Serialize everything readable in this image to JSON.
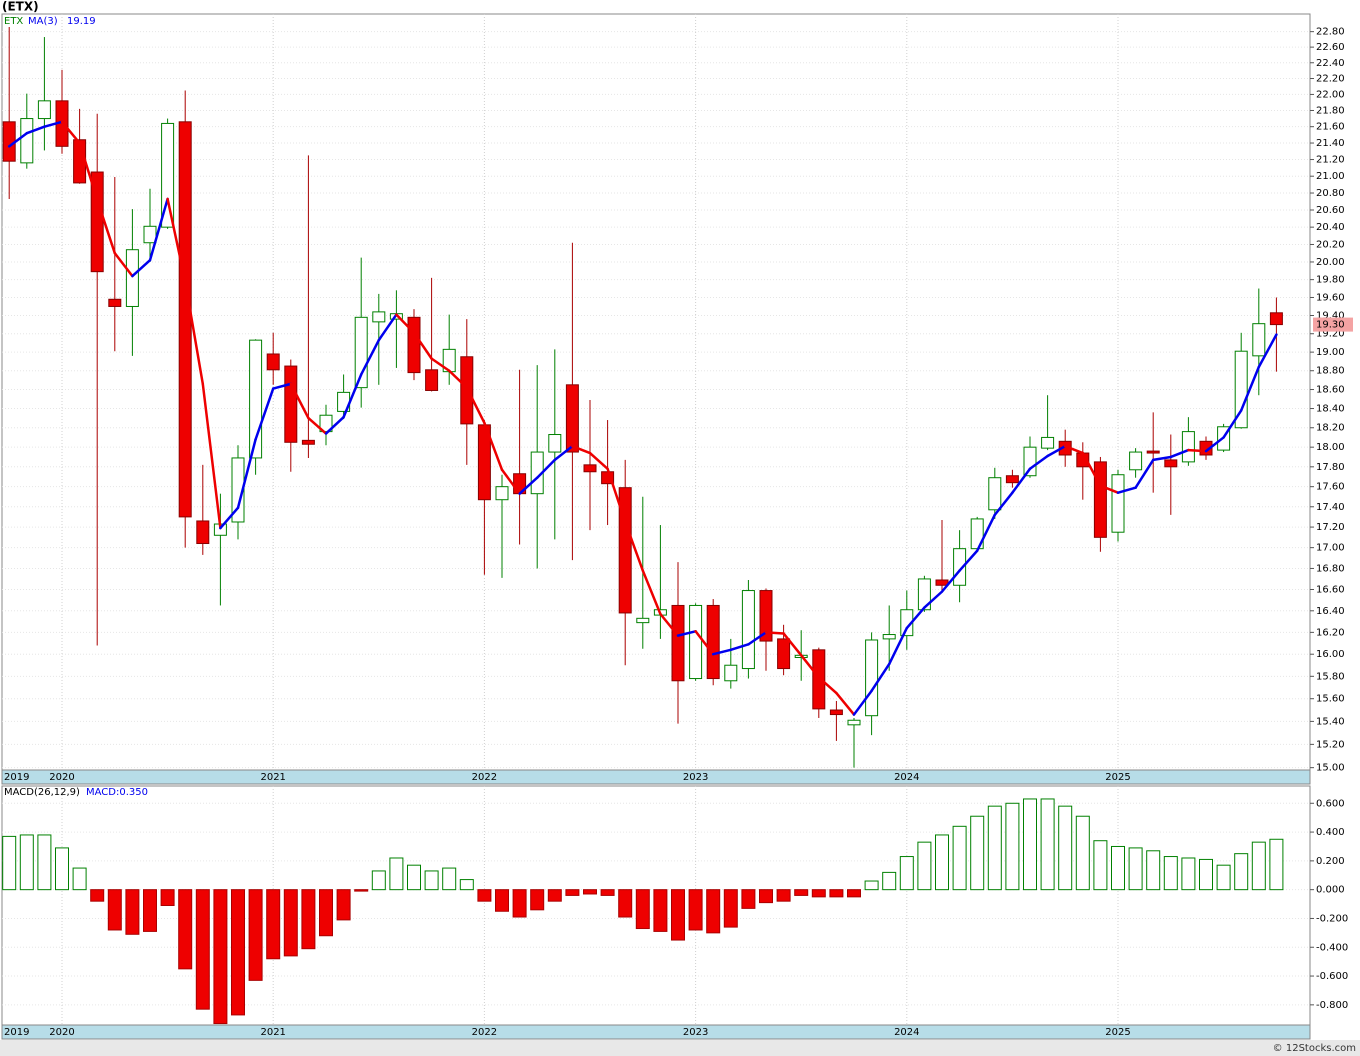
{
  "chart_data": [
    {
      "type": "candlestick",
      "title": "(ETX)",
      "name": "ETX",
      "color": "#008000",
      "up_color": "#ffffff",
      "down_color": "#ee0000",
      "categories": [
        "2019",
        null,
        null,
        "2020",
        null,
        null,
        null,
        null,
        null,
        null,
        null,
        null,
        null,
        null,
        null,
        "2021",
        null,
        null,
        null,
        null,
        null,
        null,
        null,
        null,
        null,
        null,
        null,
        "2022",
        null,
        null,
        null,
        null,
        null,
        null,
        null,
        null,
        null,
        null,
        null,
        "2023",
        null,
        null,
        null,
        null,
        null,
        null,
        null,
        null,
        null,
        null,
        null,
        "2024",
        null,
        null,
        null,
        null,
        null,
        null,
        null,
        null,
        null,
        null,
        null,
        "2025",
        null,
        null,
        null,
        null,
        null,
        null,
        null,
        null,
        null
      ],
      "open": [
        21.66,
        21.16,
        21.7,
        21.92,
        21.44,
        21.05,
        19.58,
        19.5,
        20.22,
        20.4,
        21.66,
        17.26,
        17.12,
        17.25,
        17.89,
        18.98,
        18.85,
        18.07,
        18.16,
        18.37,
        18.62,
        19.33,
        19.36,
        19.38,
        18.81,
        18.79,
        18.95,
        18.23,
        17.47,
        17.73,
        17.53,
        17.95,
        18.65,
        17.82,
        17.75,
        17.59,
        16.29,
        16.36,
        16.45,
        15.78,
        16.45,
        15.76,
        15.87,
        16.59,
        16.14,
        15.97,
        16.04,
        15.5,
        15.37,
        15.45,
        16.14,
        16.17,
        16.41,
        16.69,
        16.64,
        16.99,
        17.37,
        17.71,
        17.71,
        17.99,
        18.06,
        17.94,
        17.85,
        17.15,
        17.77,
        17.96,
        17.87,
        17.85,
        18.06,
        17.97,
        18.2,
        18.96,
        19.43
      ],
      "high": [
        22.86,
        22.01,
        22.73,
        22.31,
        21.82,
        21.76,
        20.99,
        20.61,
        20.85,
        21.7,
        22.05,
        17.82,
        17.53,
        18.02,
        19.14,
        19.21,
        18.92,
        21.25,
        18.44,
        18.76,
        20.05,
        19.64,
        19.68,
        19.47,
        19.82,
        19.41,
        19.36,
        18.28,
        17.72,
        18.81,
        18.86,
        19.03,
        20.22,
        18.49,
        18.28,
        17.87,
        17.5,
        17.22,
        16.86,
        16.47,
        16.51,
        16.14,
        16.69,
        16.61,
        16.27,
        16.22,
        16.06,
        15.58,
        15.43,
        16.2,
        16.45,
        16.59,
        16.73,
        17.27,
        17.17,
        17.3,
        17.79,
        17.77,
        18.11,
        18.54,
        18.18,
        18.05,
        17.9,
        17.77,
        17.99,
        18.36,
        18.13,
        18.31,
        18.11,
        18.24,
        19.21,
        19.7,
        19.6
      ],
      "low": [
        20.73,
        21.09,
        21.31,
        21.27,
        20.91,
        16.08,
        19.01,
        18.96,
        20.0,
        20.38,
        17.0,
        16.93,
        16.45,
        17.08,
        17.72,
        18.65,
        17.75,
        17.89,
        18.02,
        18.29,
        18.41,
        18.65,
        18.83,
        18.7,
        18.58,
        18.65,
        17.82,
        16.74,
        16.71,
        17.03,
        16.8,
        17.08,
        16.88,
        17.17,
        17.22,
        15.9,
        16.05,
        16.14,
        15.38,
        15.76,
        15.72,
        15.69,
        15.78,
        15.85,
        15.81,
        15.76,
        15.43,
        15.23,
        15.0,
        15.28,
        15.85,
        16.04,
        16.39,
        16.59,
        16.48,
        16.98,
        17.28,
        17.59,
        17.69,
        17.97,
        17.8,
        17.47,
        16.96,
        17.06,
        17.69,
        17.54,
        17.32,
        17.81,
        17.87,
        17.95,
        18.19,
        18.54,
        18.79
      ],
      "close": [
        21.18,
        21.7,
        21.92,
        21.36,
        20.92,
        19.89,
        19.5,
        20.14,
        20.41,
        21.64,
        17.3,
        17.04,
        17.23,
        17.89,
        19.13,
        18.81,
        18.05,
        18.03,
        18.33,
        18.57,
        19.38,
        19.44,
        19.42,
        18.78,
        18.59,
        19.03,
        18.24,
        17.47,
        17.6,
        17.53,
        17.95,
        18.13,
        17.95,
        17.75,
        17.63,
        16.38,
        16.33,
        16.41,
        15.76,
        16.45,
        15.78,
        15.9,
        16.59,
        16.12,
        15.87,
        15.99,
        15.51,
        15.46,
        15.41,
        16.13,
        16.18,
        16.41,
        16.7,
        16.64,
        16.99,
        17.28,
        17.69,
        17.64,
        18.0,
        18.1,
        17.92,
        17.8,
        17.1,
        17.72,
        17.95,
        17.94,
        17.8,
        18.16,
        17.92,
        18.21,
        19.01,
        19.31,
        19.3
      ],
      "close_label": "19.30",
      "series": [
        {
          "name": "MA(3)",
          "up_color": "#0000ee",
          "down_color": "#ee0000",
          "values": [
            21.36,
            21.52,
            21.6,
            21.66,
            21.4,
            20.72,
            20.1,
            19.84,
            20.02,
            20.73,
            19.78,
            18.66,
            17.19,
            17.39,
            18.08,
            18.61,
            18.66,
            18.3,
            18.14,
            18.31,
            18.76,
            19.13,
            19.41,
            19.21,
            18.93,
            18.8,
            18.62,
            18.25,
            17.77,
            17.53,
            17.69,
            17.87,
            18.01,
            17.94,
            17.78,
            17.25,
            16.78,
            16.37,
            16.17,
            16.21,
            16.0,
            16.04,
            16.09,
            16.2,
            16.19,
            15.99,
            15.79,
            15.65,
            15.46,
            15.67,
            15.91,
            16.24,
            16.43,
            16.58,
            16.78,
            16.97,
            17.32,
            17.54,
            17.78,
            17.91,
            18.01,
            17.94,
            17.61,
            17.54,
            17.59,
            17.87,
            17.9,
            17.97,
            17.96,
            18.1,
            18.38,
            18.84,
            19.19
          ]
        }
      ],
      "log_scale": true,
      "grid": true,
      "ylim": [
        14.98,
        23.03
      ],
      "yticks": [
        {
          "value": 15.0,
          "label": "15.00"
        },
        {
          "value": 15.2,
          "label": "15.20"
        },
        {
          "value": 15.4,
          "label": "15.40"
        },
        {
          "value": 15.6,
          "label": "15.60"
        },
        {
          "value": 15.8,
          "label": "15.80"
        },
        {
          "value": 16.0,
          "label": "16.00"
        },
        {
          "value": 16.2,
          "label": "16.20"
        },
        {
          "value": 16.4,
          "label": "16.40"
        },
        {
          "value": 16.6,
          "label": "16.60"
        },
        {
          "value": 16.8,
          "label": "16.80"
        },
        {
          "value": 17.0,
          "label": "17.00"
        },
        {
          "value": 17.2,
          "label": "17.20"
        },
        {
          "value": 17.4,
          "label": "17.40"
        },
        {
          "value": 17.6,
          "label": "17.60"
        },
        {
          "value": 17.8,
          "label": "17.80"
        },
        {
          "value": 18.0,
          "label": "18.00"
        },
        {
          "value": 18.2,
          "label": "18.20"
        },
        {
          "value": 18.4,
          "label": "18.40"
        },
        {
          "value": 18.6,
          "label": "18.60"
        },
        {
          "value": 18.8,
          "label": "18.80"
        },
        {
          "value": 19.0,
          "label": "19.00"
        },
        {
          "value": 19.2,
          "label": "19.20"
        },
        {
          "value": 19.4,
          "label": "19.40"
        },
        {
          "value": 19.6,
          "label": "19.60"
        },
        {
          "value": 19.8,
          "label": "19.80"
        },
        {
          "value": 20.0,
          "label": "20.00"
        },
        {
          "value": 20.2,
          "label": "20.20"
        },
        {
          "value": 20.4,
          "label": "20.40"
        },
        {
          "value": 20.6,
          "label": "20.60"
        },
        {
          "value": 20.8,
          "label": "20.80"
        },
        {
          "value": 21.0,
          "label": "21.00"
        },
        {
          "value": 21.2,
          "label": "21.20"
        },
        {
          "value": 21.4,
          "label": "21.40"
        },
        {
          "value": 21.6,
          "label": "21.60"
        },
        {
          "value": 21.8,
          "label": "21.80"
        },
        {
          "value": 22.0,
          "label": "22.00"
        },
        {
          "value": 22.2,
          "label": "22.20"
        },
        {
          "value": 22.4,
          "label": "22.40"
        },
        {
          "value": 22.6,
          "label": "22.60"
        },
        {
          "value": 22.8,
          "label": "22.80"
        }
      ]
    },
    {
      "type": "bar",
      "title": "MACD(26,12,9)",
      "value_label": "MACD:0.350",
      "up_color": "#008000",
      "down_color": "#ee0000",
      "categories": [
        "2019",
        null,
        null,
        "2020",
        null,
        null,
        null,
        null,
        null,
        null,
        null,
        null,
        null,
        null,
        null,
        "2021",
        null,
        null,
        null,
        null,
        null,
        null,
        null,
        null,
        null,
        null,
        null,
        "2022",
        null,
        null,
        null,
        null,
        null,
        null,
        null,
        null,
        null,
        null,
        null,
        "2023",
        null,
        null,
        null,
        null,
        null,
        null,
        null,
        null,
        null,
        null,
        null,
        "2024",
        null,
        null,
        null,
        null,
        null,
        null,
        null,
        null,
        null,
        null,
        null,
        "2025",
        null,
        null,
        null,
        null,
        null,
        null,
        null,
        null,
        null
      ],
      "values": [
        0.37,
        0.38,
        0.38,
        0.29,
        0.15,
        -0.08,
        -0.28,
        -0.31,
        -0.29,
        -0.11,
        -0.55,
        -0.83,
        -0.93,
        -0.87,
        -0.63,
        -0.48,
        -0.46,
        -0.41,
        -0.32,
        -0.21,
        -0.01,
        0.13,
        0.22,
        0.17,
        0.13,
        0.15,
        0.07,
        -0.08,
        -0.15,
        -0.19,
        -0.14,
        -0.08,
        -0.04,
        -0.03,
        -0.04,
        -0.19,
        -0.27,
        -0.29,
        -0.35,
        -0.28,
        -0.3,
        -0.26,
        -0.13,
        -0.09,
        -0.08,
        -0.04,
        -0.05,
        -0.05,
        -0.05,
        0.06,
        0.12,
        0.23,
        0.33,
        0.38,
        0.44,
        0.51,
        0.58,
        0.6,
        0.63,
        0.63,
        0.58,
        0.51,
        0.34,
        0.3,
        0.29,
        0.27,
        0.23,
        0.22,
        0.21,
        0.17,
        0.25,
        0.33,
        0.35
      ],
      "ylim": [
        -0.94,
        0.72
      ],
      "grid": true,
      "yticks": [
        {
          "value": -0.8,
          "label": "-0.800"
        },
        {
          "value": -0.6,
          "label": "-0.600"
        },
        {
          "value": -0.4,
          "label": "-0.400"
        },
        {
          "value": -0.2,
          "label": "-0.200"
        },
        {
          "value": 0,
          "label": "0.000"
        },
        {
          "value": 0.2,
          "label": "0.200"
        },
        {
          "value": 0.4,
          "label": "0.400"
        },
        {
          "value": 0.6,
          "label": "0.600"
        }
      ]
    }
  ],
  "footer": "© 12Stocks.com"
}
